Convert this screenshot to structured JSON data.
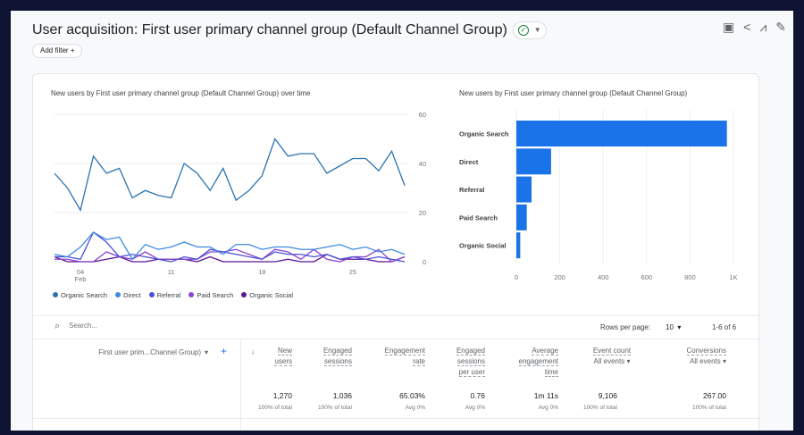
{
  "header": {
    "title": "User acquisition: First user primary channel group (Default Channel Group)",
    "add_filter": "Add filter",
    "add_icon": "+"
  },
  "toolbar": {
    "icons": [
      "customize-report-icon",
      "share-icon",
      "insights-icon",
      "edit-icon"
    ]
  },
  "line_chart_title": "New users by First user primary channel group (Default Channel Group) over time",
  "bar_chart_title": "New users by First user primary channel group (Default Channel Group)",
  "chart_data": [
    {
      "type": "line",
      "title": "New users by First user primary channel group (Default Channel Group) over time",
      "x": [
        "Feb 02",
        "Feb 03",
        "Feb 04",
        "Feb 05",
        "Feb 06",
        "Feb 07",
        "Feb 08",
        "Feb 09",
        "Feb 10",
        "Feb 11",
        "Feb 12",
        "Feb 13",
        "Feb 14",
        "Feb 15",
        "Feb 16",
        "Feb 17",
        "Feb 18",
        "Feb 19",
        "Feb 20",
        "Feb 21",
        "Feb 22",
        "Feb 23",
        "Feb 24",
        "Feb 25",
        "Feb 26",
        "Feb 27",
        "Feb 28",
        "Feb 29"
      ],
      "x_ticks": [
        "04",
        "11",
        "18",
        "25"
      ],
      "x_tick_sub": "Feb",
      "y_ticks": [
        "0",
        "20",
        "40",
        "60"
      ],
      "ylim": [
        0,
        60
      ],
      "grid": true,
      "legend": "bottom",
      "y_axis_side": "right",
      "series": [
        {
          "name": "Organic Search",
          "color": "#2a73b0",
          "values": [
            36,
            30,
            21,
            43,
            36,
            38,
            26,
            29,
            27,
            26,
            40,
            36,
            29,
            38,
            25,
            29,
            35,
            50,
            43,
            44,
            44,
            36,
            39,
            42,
            42,
            37,
            45,
            31
          ]
        },
        {
          "name": "Direct",
          "color": "#3f8ae0",
          "values": [
            3,
            2,
            6,
            12,
            9,
            10,
            1,
            7,
            5,
            6,
            8,
            6,
            6,
            3,
            7,
            7,
            5,
            6,
            6,
            5,
            5,
            6,
            7,
            5,
            6,
            4,
            5,
            3
          ]
        },
        {
          "name": "Referral",
          "color": "#4b4fd6",
          "values": [
            2,
            2,
            1,
            12,
            8,
            2,
            3,
            2,
            1,
            0,
            2,
            1,
            5,
            4,
            3,
            2,
            1,
            4,
            3,
            3,
            2,
            3,
            1,
            2,
            1,
            2,
            1,
            0
          ]
        },
        {
          "name": "Paid Search",
          "color": "#8a44d0",
          "values": [
            1,
            1,
            0,
            0,
            4,
            2,
            1,
            4,
            1,
            1,
            1,
            1,
            4,
            4,
            5,
            3,
            1,
            5,
            4,
            1,
            5,
            1,
            0,
            2,
            2,
            5,
            0,
            2
          ]
        },
        {
          "name": "Organic Social",
          "color": "#5b1590",
          "values": [
            2,
            0,
            0,
            0,
            1,
            2,
            0,
            0,
            1,
            1,
            1,
            0,
            2,
            0,
            0,
            0,
            0,
            0,
            1,
            0,
            0,
            3,
            1,
            1,
            1,
            0,
            0,
            2
          ]
        }
      ]
    },
    {
      "type": "bar",
      "orientation": "horizontal",
      "title": "New users by First user primary channel group (Default Channel Group)",
      "categories": [
        "Organic Search",
        "Direct",
        "Referral",
        "Paid Search",
        "Organic Social"
      ],
      "values": [
        970,
        160,
        70,
        48,
        18
      ],
      "color": "#1a73e8",
      "x_ticks": [
        "0",
        "200",
        "400",
        "600",
        "800",
        "1K"
      ],
      "xlim": [
        0,
        1000
      ],
      "grid": true
    }
  ],
  "table": {
    "search_placeholder": "Search...",
    "rows_per_page_label": "Rows per page:",
    "rows_per_page": "10",
    "range": "1-6 of 6",
    "dimension_header": "First user prim...Channel Group)",
    "sort_icon": "↓",
    "columns": [
      {
        "l1": "New",
        "l2": "users",
        "l3": "",
        "total": "1,270",
        "sub": "100% of total"
      },
      {
        "l1": "Engaged",
        "l2": "sessions",
        "l3": "",
        "total": "1,036",
        "sub": "100% of total"
      },
      {
        "l1": "Engagement",
        "l2": "rate",
        "l3": "",
        "total": "65.03%",
        "sub": "Avg 0%"
      },
      {
        "l1": "Engaged",
        "l2": "sessions",
        "l3": "per user",
        "total": "0.76",
        "sub": "Avg 0%"
      },
      {
        "l1": "Average",
        "l2": "engagement",
        "l3": "time",
        "total": "1m 11s",
        "sub": "Avg 0%"
      },
      {
        "l1": "Event count",
        "l2": "All events",
        "l3": "",
        "total": "9,106",
        "sub": "100% of total"
      },
      {
        "l1": "Conversions",
        "l2": "All events",
        "l3": "",
        "total": "267.00",
        "sub": "100% of total"
      }
    ]
  }
}
